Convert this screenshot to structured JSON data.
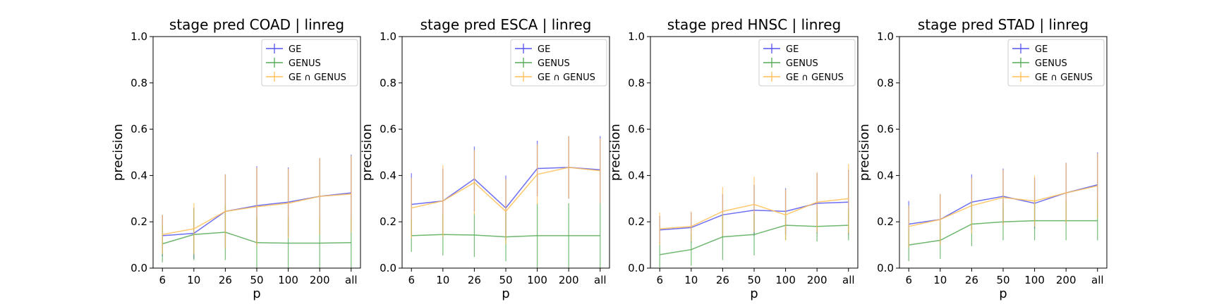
{
  "colors": {
    "GE": "#5555ee",
    "GENUS": "#55aa55",
    "GE_GENUS": "#ffbf55"
  },
  "chart_data": [
    {
      "type": "line",
      "title": "stage pred COAD | linreg",
      "xlabel": "p",
      "ylabel": "precision",
      "categories": [
        "6",
        "10",
        "26",
        "50",
        "100",
        "200",
        "all"
      ],
      "ylim": [
        0,
        1
      ],
      "yticks": [
        "0.0",
        "0.2",
        "0.4",
        "0.6",
        "0.8",
        "1.0"
      ],
      "legend_position": "top-right",
      "series": [
        {
          "name": "GE",
          "values": [
            0.14,
            0.15,
            0.245,
            0.27,
            0.285,
            0.31,
            0.325
          ],
          "err": [
            0.09,
            0.11,
            0.16,
            0.17,
            0.15,
            0.165,
            0.165
          ]
        },
        {
          "name": "GENUS",
          "values": [
            0.105,
            0.145,
            0.155,
            0.11,
            0.108,
            0.108,
            0.11
          ],
          "err": [
            0.08,
            0.11,
            0.12,
            0.11,
            0.11,
            0.11,
            0.11
          ]
        },
        {
          "name": "GE ∩ GENUS",
          "values": [
            0.145,
            0.17,
            0.245,
            0.265,
            0.28,
            0.31,
            0.32
          ],
          "err": [
            0.085,
            0.11,
            0.16,
            0.17,
            0.15,
            0.165,
            0.165
          ]
        }
      ]
    },
    {
      "type": "line",
      "title": "stage pred ESCA | linreg",
      "xlabel": "p",
      "ylabel": "precision",
      "categories": [
        "6",
        "10",
        "26",
        "50",
        "100",
        "200",
        "all"
      ],
      "ylim": [
        0,
        1
      ],
      "yticks": [
        "0.0",
        "0.2",
        "0.4",
        "0.6",
        "0.8",
        "1.0"
      ],
      "legend_position": "top-right",
      "series": [
        {
          "name": "GE",
          "values": [
            0.275,
            0.29,
            0.385,
            0.26,
            0.43,
            0.435,
            0.425
          ],
          "err": [
            0.135,
            0.14,
            0.14,
            0.14,
            0.12,
            0.135,
            0.145
          ]
        },
        {
          "name": "GENUS",
          "values": [
            0.14,
            0.145,
            0.143,
            0.135,
            0.14,
            0.14,
            0.14
          ],
          "err": [
            0.07,
            0.09,
            0.095,
            0.105,
            0.14,
            0.14,
            0.14
          ]
        },
        {
          "name": "GE ∩ GENUS",
          "values": [
            0.26,
            0.29,
            0.37,
            0.245,
            0.405,
            0.435,
            0.42
          ],
          "err": [
            0.13,
            0.155,
            0.14,
            0.14,
            0.13,
            0.135,
            0.14
          ]
        }
      ]
    },
    {
      "type": "line",
      "title": "stage pred HNSC | linreg",
      "xlabel": "p",
      "ylabel": "precision",
      "categories": [
        "6",
        "10",
        "26",
        "50",
        "100",
        "200",
        "all"
      ],
      "ylim": [
        0,
        1
      ],
      "yticks": [
        "0.0",
        "0.2",
        "0.4",
        "0.6",
        "0.8",
        "1.0"
      ],
      "legend_position": "top-right",
      "series": [
        {
          "name": "GE",
          "values": [
            0.165,
            0.175,
            0.23,
            0.25,
            0.245,
            0.28,
            0.285
          ],
          "err": [
            0.06,
            0.065,
            0.09,
            0.11,
            0.1,
            0.13,
            0.14
          ]
        },
        {
          "name": "GENUS",
          "values": [
            0.058,
            0.08,
            0.135,
            0.145,
            0.185,
            0.18,
            0.185
          ],
          "err": [
            0.055,
            0.07,
            0.1,
            0.09,
            0.065,
            0.065,
            0.065
          ]
        },
        {
          "name": "GE ∩ GENUS",
          "values": [
            0.17,
            0.18,
            0.245,
            0.275,
            0.23,
            0.285,
            0.3
          ],
          "err": [
            0.07,
            0.065,
            0.105,
            0.12,
            0.11,
            0.13,
            0.15
          ]
        }
      ]
    },
    {
      "type": "line",
      "title": "stage pred STAD | linreg",
      "xlabel": "p",
      "ylabel": "precision",
      "categories": [
        "6",
        "10",
        "26",
        "50",
        "100",
        "200",
        "all"
      ],
      "ylim": [
        0,
        1
      ],
      "yticks": [
        "0.0",
        "0.2",
        "0.4",
        "0.6",
        "0.8",
        "1.0"
      ],
      "legend_position": "top-right",
      "series": [
        {
          "name": "GE",
          "values": [
            0.19,
            0.21,
            0.285,
            0.31,
            0.28,
            0.325,
            0.36
          ],
          "err": [
            0.1,
            0.11,
            0.12,
            0.12,
            0.11,
            0.13,
            0.14
          ]
        },
        {
          "name": "GENUS",
          "values": [
            0.1,
            0.12,
            0.19,
            0.2,
            0.205,
            0.205,
            0.205
          ],
          "err": [
            0.07,
            0.08,
            0.095,
            0.08,
            0.085,
            0.085,
            0.085
          ]
        },
        {
          "name": "GE ∩ GENUS",
          "values": [
            0.18,
            0.21,
            0.27,
            0.305,
            0.29,
            0.325,
            0.355
          ],
          "err": [
            0.09,
            0.11,
            0.12,
            0.12,
            0.11,
            0.13,
            0.14
          ]
        }
      ]
    }
  ]
}
